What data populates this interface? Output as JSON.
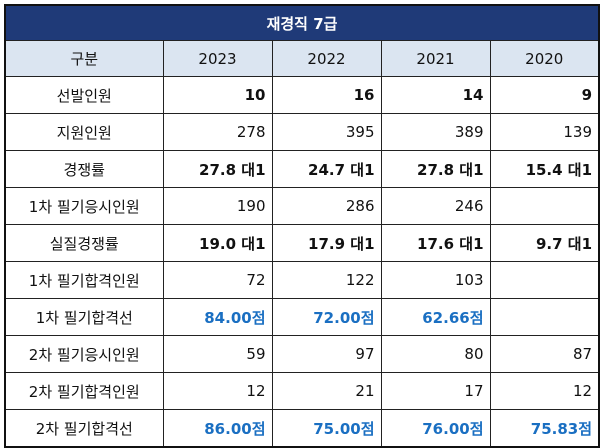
{
  "title": "재경직 7급",
  "header": {
    "category": "구분",
    "years": [
      "2023",
      "2022",
      "2021",
      "2020"
    ]
  },
  "rows": [
    {
      "label": "선발인원",
      "values": [
        "10",
        "16",
        "14",
        "9"
      ],
      "style": "bold"
    },
    {
      "label": "지원인원",
      "values": [
        "278",
        "395",
        "389",
        "139"
      ],
      "style": "normal"
    },
    {
      "label": "경쟁률",
      "values": [
        "27.8 대1",
        "24.7 대1",
        "27.8 대1",
        "15.4 대1"
      ],
      "style": "bold"
    },
    {
      "label": "1차 필기응시인원",
      "values": [
        "190",
        "286",
        "246",
        ""
      ],
      "style": "normal"
    },
    {
      "label": "실질경쟁률",
      "values": [
        "19.0 대1",
        "17.9 대1",
        "17.6 대1",
        "9.7 대1"
      ],
      "style": "bold"
    },
    {
      "label": "1차 필기합격인원",
      "values": [
        "72",
        "122",
        "103",
        ""
      ],
      "style": "normal"
    },
    {
      "label": "1차 필기합격선",
      "values": [
        "84.00점",
        "72.00점",
        "62.66점",
        ""
      ],
      "style": "blue"
    },
    {
      "label": "2차 필기응시인원",
      "values": [
        "59",
        "97",
        "80",
        "87"
      ],
      "style": "normal"
    },
    {
      "label": "2차 필기합격인원",
      "values": [
        "12",
        "21",
        "17",
        "12"
      ],
      "style": "normal"
    },
    {
      "label": "2차 필기합격선",
      "values": [
        "86.00점",
        "75.00점",
        "76.00점",
        "75.83점"
      ],
      "style": "blue"
    }
  ],
  "colors": {
    "title_bg": "#1f3a78",
    "header_bg": "#dbe5f1",
    "score_text": "#1a6fc2"
  }
}
